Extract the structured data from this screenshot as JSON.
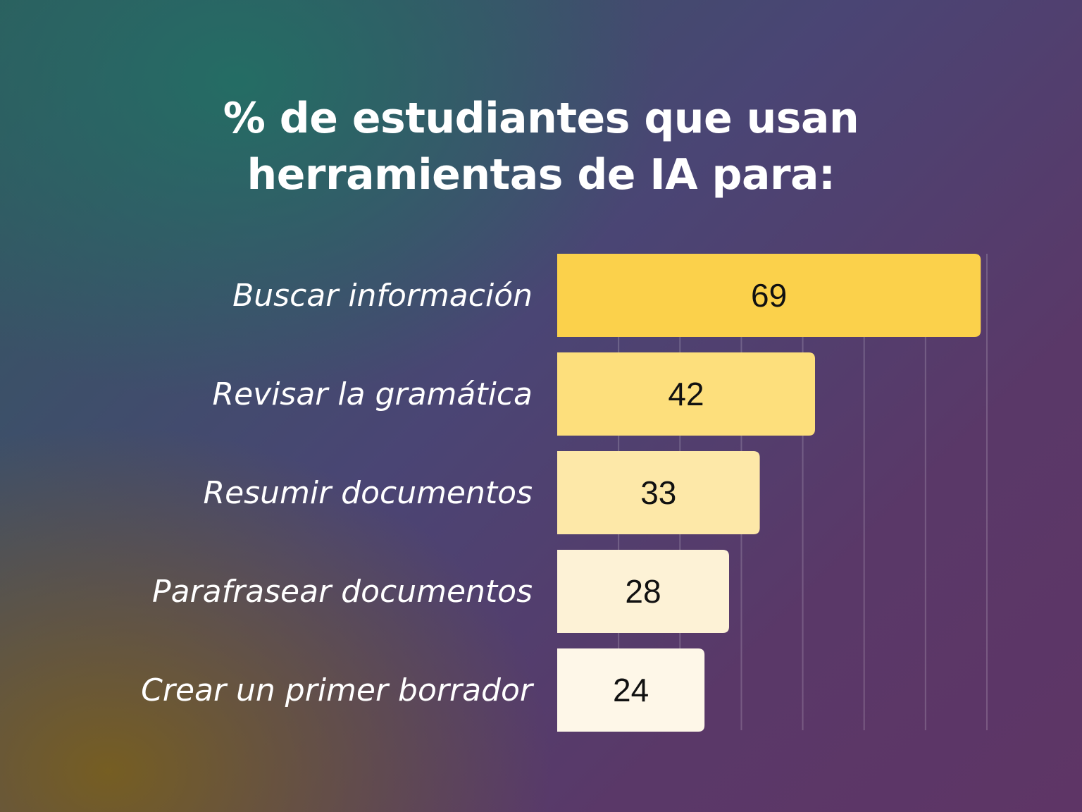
{
  "chart_data": {
    "type": "bar",
    "orientation": "horizontal",
    "title_lines": [
      "% de estudiantes que usan",
      "herramientas de IA para:"
    ],
    "categories": [
      "Buscar información",
      "Revisar la gramática",
      "Resumir documentos",
      "Parafrasear documentos",
      "Crear un primer borrador"
    ],
    "values": [
      69,
      42,
      33,
      28,
      24
    ],
    "xlim": [
      0,
      70
    ],
    "grid": true,
    "bar_colors": [
      "#fbd14b",
      "#fddf7c",
      "#fde8a8",
      "#fdf2d6",
      "#fef7e8"
    ],
    "label_color": "#ffffff",
    "value_color": "#111111"
  }
}
